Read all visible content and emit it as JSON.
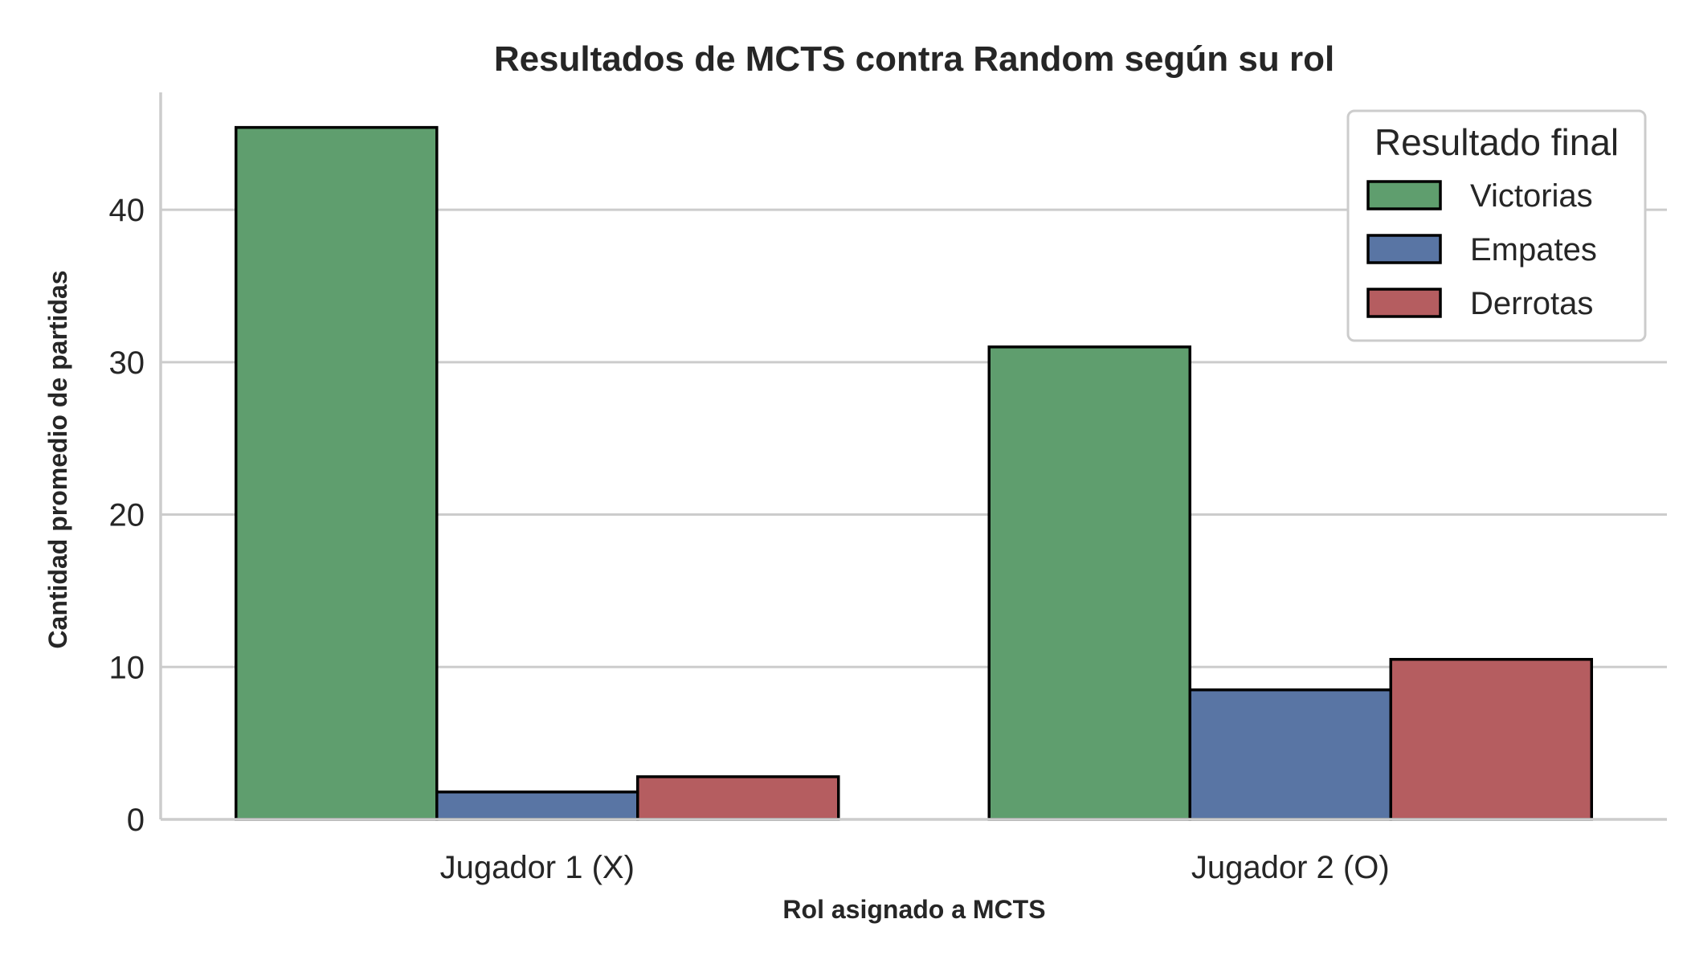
{
  "chart_data": {
    "type": "bar",
    "title": "Resultados de MCTS contra Random según su rol",
    "xlabel": "Rol asignado a MCTS",
    "ylabel": "Cantidad promedio de partidas",
    "categories": [
      "Jugador 1 (X)",
      "Jugador 2 (O)"
    ],
    "series": [
      {
        "name": "Victorias",
        "color": "#5f9e6e",
        "values": [
          45.4,
          31.0
        ]
      },
      {
        "name": "Empates",
        "color": "#5975a4",
        "values": [
          1.8,
          8.5
        ]
      },
      {
        "name": "Derrotas",
        "color": "#b55d60",
        "values": [
          2.8,
          10.5
        ]
      }
    ],
    "ylim": [
      0,
      47.7
    ],
    "yticks": [
      0,
      10,
      20,
      30,
      40
    ],
    "grid": "horizontal",
    "legend": {
      "title": "Resultado final",
      "position": "top-right"
    }
  }
}
